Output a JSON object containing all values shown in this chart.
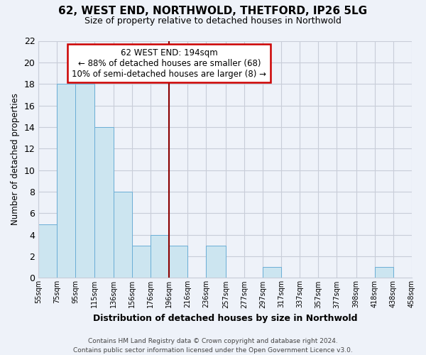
{
  "title": "62, WEST END, NORTHWOLD, THETFORD, IP26 5LG",
  "subtitle": "Size of property relative to detached houses in Northwold",
  "xlabel": "Distribution of detached houses by size in Northwold",
  "ylabel": "Number of detached properties",
  "bin_edges": [
    55,
    75,
    95,
    115,
    136,
    156,
    176,
    196,
    216,
    236,
    257,
    277,
    297,
    317,
    337,
    357,
    377,
    398,
    418,
    438,
    458
  ],
  "bin_labels": [
    "55sqm",
    "75sqm",
    "95sqm",
    "115sqm",
    "136sqm",
    "156sqm",
    "176sqm",
    "196sqm",
    "216sqm",
    "236sqm",
    "257sqm",
    "277sqm",
    "297sqm",
    "317sqm",
    "337sqm",
    "357sqm",
    "377sqm",
    "398sqm",
    "418sqm",
    "438sqm",
    "458sqm"
  ],
  "counts": [
    5,
    18,
    18,
    14,
    8,
    3,
    4,
    3,
    0,
    3,
    0,
    0,
    1,
    0,
    0,
    0,
    0,
    0,
    1,
    0
  ],
  "bar_color": "#cce5f0",
  "bar_edge_color": "#6baed6",
  "ref_line_x": 196,
  "ref_line_color": "#8b0000",
  "ylim": [
    0,
    22
  ],
  "yticks": [
    0,
    2,
    4,
    6,
    8,
    10,
    12,
    14,
    16,
    18,
    20,
    22
  ],
  "annotation_title": "62 WEST END: 194sqm",
  "annotation_line1": "← 88% of detached houses are smaller (68)",
  "annotation_line2": "10% of semi-detached houses are larger (8) →",
  "footer1": "Contains HM Land Registry data © Crown copyright and database right 2024.",
  "footer2": "Contains public sector information licensed under the Open Government Licence v3.0.",
  "bg_color": "#eef2f9",
  "plot_bg_color": "#eef2f9",
  "grid_color": "#c8cdd8"
}
